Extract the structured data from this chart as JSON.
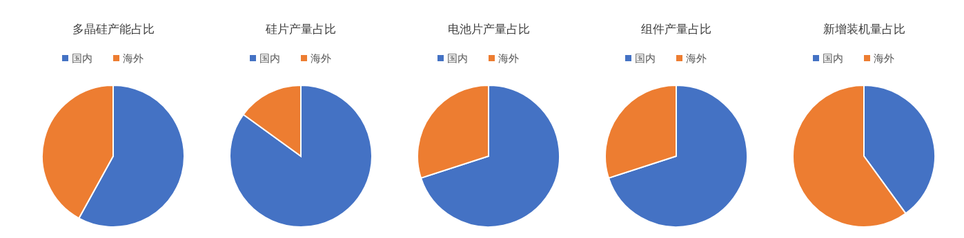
{
  "chart_data": [
    {
      "type": "pie",
      "title": "多晶硅产能占比",
      "categories": [
        "国内",
        "海外"
      ],
      "values": [
        58,
        42
      ],
      "colors": [
        "#4472c4",
        "#ed7d31"
      ],
      "legend": "top"
    },
    {
      "type": "pie",
      "title": "硅片产量占比",
      "categories": [
        "国内",
        "海外"
      ],
      "values": [
        85,
        15
      ],
      "colors": [
        "#4472c4",
        "#ed7d31"
      ],
      "legend": "top"
    },
    {
      "type": "pie",
      "title": "电池片产量占比",
      "categories": [
        "国内",
        "海外"
      ],
      "values": [
        70,
        30
      ],
      "colors": [
        "#4472c4",
        "#ed7d31"
      ],
      "legend": "top"
    },
    {
      "type": "pie",
      "title": "组件产量占比",
      "categories": [
        "国内",
        "海外"
      ],
      "values": [
        70,
        30
      ],
      "colors": [
        "#4472c4",
        "#ed7d31"
      ],
      "legend": "top"
    },
    {
      "type": "pie",
      "title": "新增装机量占比",
      "categories": [
        "国内",
        "海外"
      ],
      "values": [
        40,
        60
      ],
      "colors": [
        "#4472c4",
        "#ed7d31"
      ],
      "legend": "top"
    }
  ]
}
